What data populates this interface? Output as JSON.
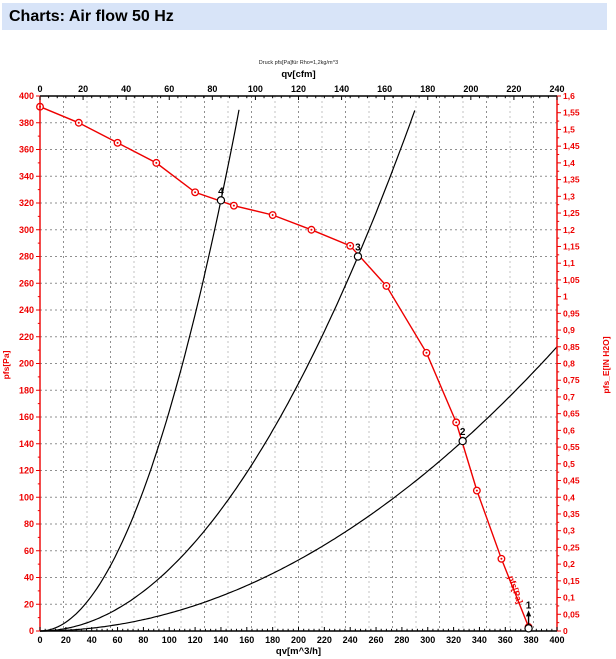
{
  "header": {
    "title": "Charts: Air flow 50 Hz"
  },
  "colors": {
    "accent_red": "#ee0000",
    "black": "#000000",
    "grid_dark": "#8f8f8f",
    "grid_light": "#c3c3c3",
    "header_bg": "#d8e4f8"
  },
  "chart_data": {
    "type": "line",
    "title": "Druck pfs[Pa]für Rho=1,2kg/m^3",
    "grid": "dashed",
    "axes": {
      "top": {
        "label": "qv[cfm]",
        "min": 0,
        "max": 240,
        "step": 20,
        "color": "#000000"
      },
      "bottom": {
        "label": "qv[m^3/h]",
        "min": 0,
        "max": 400,
        "step": 20,
        "color": "#000000"
      },
      "left": {
        "label": "pfs[Pa]",
        "min": 0,
        "max": 400,
        "step": 20,
        "color": "#ee0000"
      },
      "right": {
        "label": "pfs_E[IN H2O]",
        "min": 0,
        "max": 1.6,
        "step": 0.05,
        "color": "#ee0000",
        "tick_format": "comma-decimal"
      }
    },
    "fan_curve": {
      "name": "pfs[Pa]",
      "color": "#ee0000",
      "curve_label": "pfs[Pa]",
      "points_qv_pa": [
        [
          0,
          392
        ],
        [
          30,
          380
        ],
        [
          60,
          365
        ],
        [
          90,
          350
        ],
        [
          120,
          328
        ],
        [
          150,
          318
        ],
        [
          180,
          311
        ],
        [
          210,
          300
        ],
        [
          240,
          288
        ],
        [
          268,
          258
        ],
        [
          299,
          208
        ],
        [
          322,
          156
        ],
        [
          338,
          105
        ],
        [
          357,
          54
        ],
        [
          378,
          3
        ]
      ]
    },
    "system_curves": [
      {
        "name": "system-curve-4",
        "k": 0.01643,
        "qv_end": 155
      },
      {
        "name": "system-curve-3",
        "k": 0.004628,
        "qv_end": 291
      },
      {
        "name": "system-curve-2",
        "k": 0.001328,
        "qv_end": 400
      }
    ],
    "operating_points": [
      {
        "label": "4",
        "qv": 140,
        "pa": 322
      },
      {
        "label": "3",
        "qv": 246,
        "pa": 280
      },
      {
        "label": "2",
        "qv": 327,
        "pa": 142
      },
      {
        "label": "1",
        "qv": 378,
        "pa": 2,
        "arrow": true
      }
    ]
  }
}
